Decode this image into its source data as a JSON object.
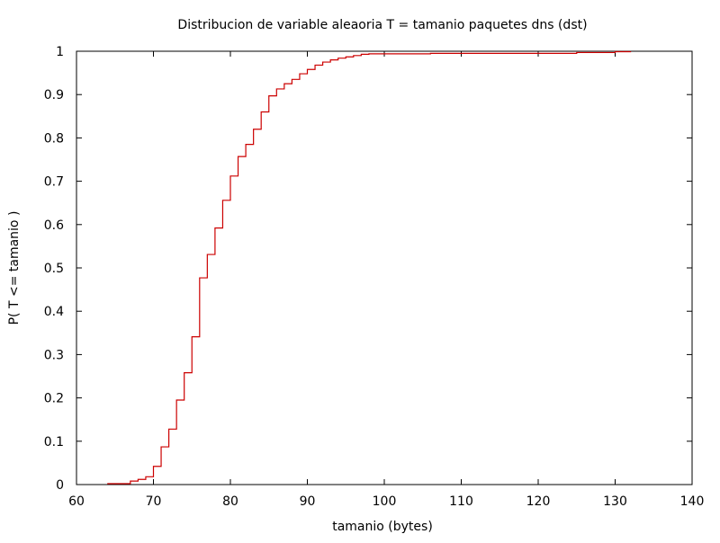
{
  "chart_data": {
    "type": "line",
    "style": "step",
    "title": "Distribucion de variable aleaoria T = tamanio paquetes dns (dst)",
    "xlabel": "tamanio (bytes)",
    "ylabel": "P( T <= tamanio )",
    "xlim": [
      60,
      140
    ],
    "ylim": [
      0,
      1
    ],
    "x_ticks": [
      60,
      70,
      80,
      90,
      100,
      110,
      120,
      130,
      140
    ],
    "y_ticks": [
      0,
      0.1,
      0.2,
      0.3,
      0.4,
      0.5,
      0.6,
      0.7,
      0.8,
      0.9,
      1
    ],
    "x_tick_labels": [
      "60",
      "70",
      "80",
      "90",
      "100",
      "110",
      "120",
      "130",
      "140"
    ],
    "y_tick_labels": [
      "0",
      "0.1",
      "0.2",
      "0.3",
      "0.4",
      "0.5",
      "0.6",
      "0.7",
      "0.8",
      "0.9",
      "1"
    ],
    "grid": false,
    "legend": "none",
    "line_color": "#cc0000",
    "series": [
      {
        "x": [
          64,
          67,
          68,
          69,
          70,
          71,
          72,
          73,
          74,
          75,
          76,
          77,
          78,
          79,
          80,
          81,
          82,
          83,
          84,
          85,
          86,
          87,
          88,
          89,
          90,
          91,
          92,
          93,
          94,
          95,
          96,
          97,
          98,
          106,
          125,
          130,
          132
        ],
        "y": [
          0.002,
          0.008,
          0.012,
          0.018,
          0.042,
          0.087,
          0.128,
          0.195,
          0.258,
          0.341,
          0.477,
          0.531,
          0.592,
          0.656,
          0.712,
          0.757,
          0.785,
          0.82,
          0.86,
          0.897,
          0.913,
          0.925,
          0.935,
          0.948,
          0.958,
          0.968,
          0.975,
          0.98,
          0.984,
          0.987,
          0.99,
          0.993,
          0.994,
          0.995,
          0.997,
          0.999,
          1.0
        ]
      }
    ]
  }
}
